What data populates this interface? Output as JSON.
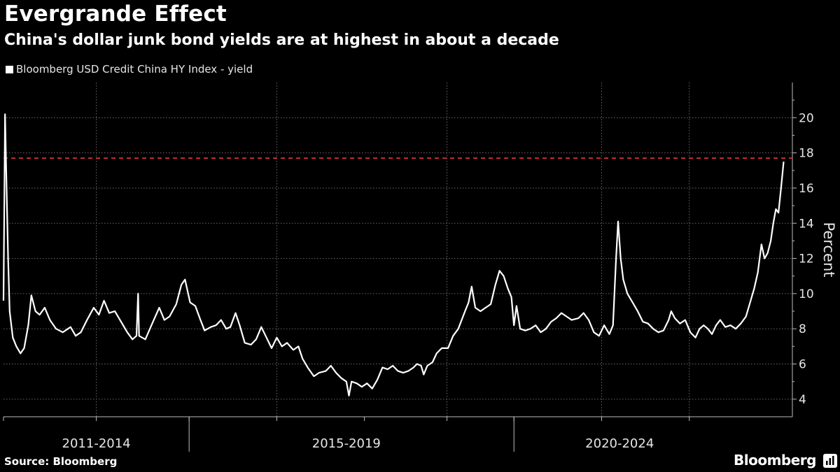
{
  "chart_data": {
    "type": "line",
    "title": "Evergrande Effect",
    "subtitle": "China's dollar junk bond yields are at highest in about a decade",
    "series": [
      {
        "name": "Bloomberg USD Credit China HY Index - yield",
        "color": "#ffffff",
        "values": [
          [
            2010.6,
            9.6
          ],
          [
            2010.63,
            20.2
          ],
          [
            2010.66,
            16.0
          ],
          [
            2010.69,
            12.0
          ],
          [
            2010.72,
            9.0
          ],
          [
            2010.78,
            7.5
          ],
          [
            2010.85,
            7.0
          ],
          [
            2010.93,
            6.6
          ],
          [
            2011.0,
            6.9
          ],
          [
            2011.08,
            8.2
          ],
          [
            2011.14,
            9.9
          ],
          [
            2011.22,
            9.0
          ],
          [
            2011.3,
            8.8
          ],
          [
            2011.4,
            9.2
          ],
          [
            2011.5,
            8.5
          ],
          [
            2011.62,
            8.0
          ],
          [
            2011.75,
            7.8
          ],
          [
            2011.9,
            8.1
          ],
          [
            2012.0,
            7.6
          ],
          [
            2012.1,
            7.8
          ],
          [
            2012.22,
            8.5
          ],
          [
            2012.35,
            9.2
          ],
          [
            2012.45,
            8.8
          ],
          [
            2012.55,
            9.6
          ],
          [
            2012.65,
            8.9
          ],
          [
            2012.76,
            9.0
          ],
          [
            2012.88,
            8.4
          ],
          [
            2013.0,
            7.8
          ],
          [
            2013.1,
            7.4
          ],
          [
            2013.18,
            7.6
          ],
          [
            2013.21,
            10.0
          ],
          [
            2013.23,
            7.6
          ],
          [
            2013.35,
            7.4
          ],
          [
            2013.5,
            8.4
          ],
          [
            2013.62,
            9.2
          ],
          [
            2013.72,
            8.5
          ],
          [
            2013.82,
            8.7
          ],
          [
            2013.95,
            9.4
          ],
          [
            2014.05,
            10.5
          ],
          [
            2014.12,
            10.8
          ],
          [
            2014.22,
            9.5
          ],
          [
            2014.32,
            9.3
          ],
          [
            2014.42,
            8.5
          ],
          [
            2014.5,
            7.9
          ],
          [
            2014.62,
            8.1
          ],
          [
            2014.72,
            8.2
          ],
          [
            2014.82,
            8.5
          ],
          [
            2014.92,
            8.0
          ],
          [
            2015.0,
            8.1
          ],
          [
            2015.1,
            8.9
          ],
          [
            2015.18,
            8.2
          ],
          [
            2015.28,
            7.2
          ],
          [
            2015.4,
            7.1
          ],
          [
            2015.5,
            7.4
          ],
          [
            2015.6,
            8.1
          ],
          [
            2015.7,
            7.5
          ],
          [
            2015.8,
            6.9
          ],
          [
            2015.9,
            7.5
          ],
          [
            2016.0,
            7.0
          ],
          [
            2016.1,
            7.2
          ],
          [
            2016.22,
            6.8
          ],
          [
            2016.32,
            7.0
          ],
          [
            2016.4,
            6.3
          ],
          [
            2016.5,
            5.8
          ],
          [
            2016.62,
            5.3
          ],
          [
            2016.72,
            5.5
          ],
          [
            2016.85,
            5.6
          ],
          [
            2016.95,
            5.9
          ],
          [
            2017.05,
            5.5
          ],
          [
            2017.15,
            5.2
          ],
          [
            2017.25,
            5.0
          ],
          [
            2017.3,
            4.2
          ],
          [
            2017.35,
            5.0
          ],
          [
            2017.45,
            4.9
          ],
          [
            2017.55,
            4.7
          ],
          [
            2017.65,
            4.9
          ],
          [
            2017.75,
            4.6
          ],
          [
            2017.85,
            5.1
          ],
          [
            2017.95,
            5.8
          ],
          [
            2018.05,
            5.7
          ],
          [
            2018.15,
            5.9
          ],
          [
            2018.25,
            5.6
          ],
          [
            2018.35,
            5.5
          ],
          [
            2018.45,
            5.6
          ],
          [
            2018.55,
            5.8
          ],
          [
            2018.62,
            6.0
          ],
          [
            2018.7,
            5.9
          ],
          [
            2018.75,
            5.4
          ],
          [
            2018.82,
            5.9
          ],
          [
            2018.92,
            6.1
          ],
          [
            2019.0,
            6.6
          ],
          [
            2019.1,
            6.9
          ],
          [
            2019.22,
            6.9
          ],
          [
            2019.32,
            7.6
          ],
          [
            2019.42,
            8.0
          ],
          [
            2019.55,
            9.0
          ],
          [
            2019.62,
            9.5
          ],
          [
            2019.68,
            10.4
          ],
          [
            2019.75,
            9.2
          ],
          [
            2019.85,
            9.0
          ],
          [
            2019.95,
            9.2
          ],
          [
            2020.05,
            9.4
          ],
          [
            2020.14,
            10.5
          ],
          [
            2020.22,
            11.3
          ],
          [
            2020.3,
            11.0
          ],
          [
            2020.38,
            10.3
          ],
          [
            2020.45,
            9.8
          ],
          [
            2020.5,
            8.2
          ],
          [
            2020.55,
            9.3
          ],
          [
            2020.62,
            8.0
          ],
          [
            2020.72,
            7.9
          ],
          [
            2020.82,
            8.0
          ],
          [
            2020.92,
            8.2
          ],
          [
            2021.02,
            7.8
          ],
          [
            2021.12,
            8.0
          ],
          [
            2021.22,
            8.4
          ],
          [
            2021.32,
            8.6
          ],
          [
            2021.42,
            8.9
          ],
          [
            2021.52,
            8.7
          ],
          [
            2021.62,
            8.5
          ],
          [
            2021.75,
            8.6
          ],
          [
            2021.85,
            8.9
          ],
          [
            2021.95,
            8.5
          ],
          [
            2022.05,
            7.8
          ],
          [
            2022.15,
            7.6
          ],
          [
            2022.25,
            8.2
          ],
          [
            2022.35,
            7.7
          ],
          [
            2022.42,
            8.2
          ],
          [
            2022.48,
            12.0
          ],
          [
            2022.52,
            14.1
          ],
          [
            2022.57,
            12.0
          ],
          [
            2022.62,
            10.8
          ],
          [
            2022.7,
            10.0
          ],
          [
            2022.8,
            9.5
          ],
          [
            2022.9,
            9.0
          ],
          [
            2023.0,
            8.4
          ],
          [
            2023.1,
            8.3
          ],
          [
            2023.2,
            8.0
          ],
          [
            2023.3,
            7.8
          ],
          [
            2023.4,
            7.9
          ],
          [
            2023.5,
            8.5
          ],
          [
            2023.55,
            9.0
          ],
          [
            2023.62,
            8.6
          ],
          [
            2023.72,
            8.3
          ],
          [
            2023.82,
            8.5
          ],
          [
            2023.92,
            7.8
          ],
          [
            2024.02,
            7.5
          ],
          [
            2024.1,
            8.0
          ],
          [
            2024.18,
            8.2
          ],
          [
            2024.26,
            8.0
          ],
          [
            2024.34,
            7.7
          ],
          [
            2024.42,
            8.2
          ],
          [
            2024.5,
            8.5
          ],
          [
            2024.6,
            8.1
          ],
          [
            2024.7,
            8.2
          ],
          [
            2024.8,
            8.0
          ],
          [
            2024.9,
            8.3
          ],
          [
            2025.0,
            8.7
          ],
          [
            2025.08,
            9.5
          ],
          [
            2025.16,
            10.3
          ],
          [
            2025.23,
            11.2
          ],
          [
            2025.3,
            12.8
          ],
          [
            2025.36,
            12.0
          ],
          [
            2025.42,
            12.3
          ],
          [
            2025.48,
            13.0
          ],
          [
            2025.53,
            14.0
          ],
          [
            2025.58,
            14.8
          ],
          [
            2025.63,
            14.6
          ],
          [
            2025.68,
            16.0
          ],
          [
            2025.73,
            17.5
          ]
        ]
      }
    ],
    "reference_line": {
      "y": 17.7,
      "color": "#e8344a",
      "style": "dashed"
    },
    "ylabel": "Percent",
    "ylim": [
      3.0,
      22.0
    ],
    "yticks": [
      4,
      6,
      8,
      10,
      12,
      14,
      16,
      18,
      20
    ],
    "xlim": [
      2010.6,
      2025.9
    ],
    "x_groups": [
      {
        "label": "2011-2014",
        "center": 2012.4
      },
      {
        "label": "2015-2019",
        "center": 2017.25
      },
      {
        "label": "2020-2024",
        "center": 2022.55
      }
    ],
    "x_group_boundaries": [
      2014.2,
      2020.5
    ],
    "x_minor_ticks": [
      2010.6,
      2012.4,
      2014.2,
      2015.9,
      2017.6,
      2019.2,
      2020.5,
      2022.2,
      2023.9
    ],
    "x_gridlines": [
      2012.4,
      2015.9,
      2019.2,
      2022.2,
      2023.9
    ],
    "grid": true,
    "legend_position": "top-left"
  },
  "footer": {
    "source": "Source: Bloomberg",
    "brand": "Bloomberg"
  },
  "colors": {
    "background": "#000000",
    "line": "#ffffff",
    "grid": "#6b6b6b",
    "reference": "#e8344a"
  }
}
